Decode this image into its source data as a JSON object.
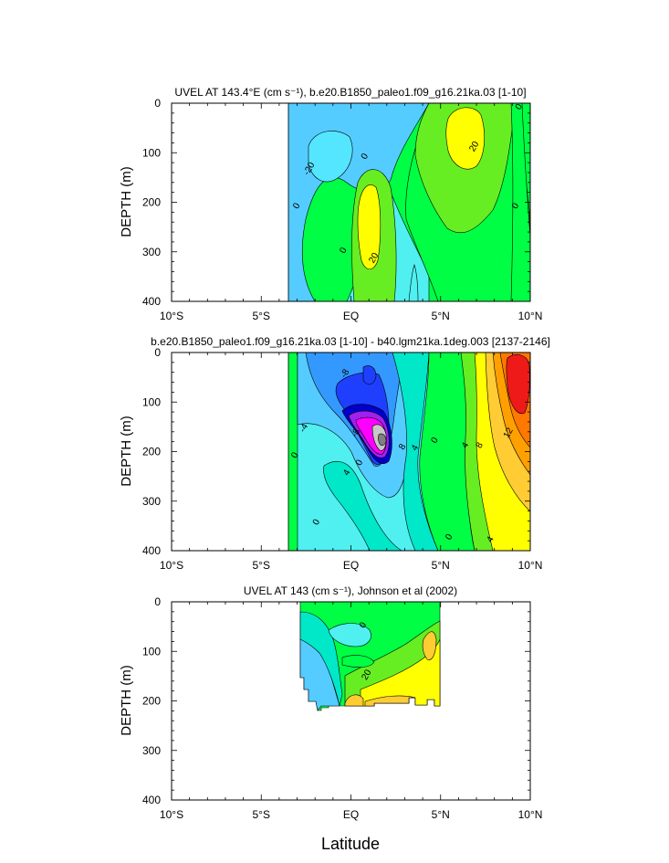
{
  "figure": {
    "xlabel": "Latitude",
    "colors": {
      "levels": [
        "#0000c8",
        "#1f3fff",
        "#3399ff",
        "#55ccff",
        "#50f0f0",
        "#00e8c8",
        "#00ff44",
        "#66ee22",
        "#b4f028",
        "#ffff00",
        "#ffcc33",
        "#ffa000",
        "#ff7800",
        "#ff4a10",
        "#ee1a1a",
        "#a020f0",
        "#ff00ff",
        "#c8c8c8",
        "#808080",
        "#ffffff"
      ]
    }
  },
  "chart_data": [
    {
      "type": "heatmap",
      "title": "UVEL AT 143.4°E (cm s⁻¹), b.e20.B1850_paleo1.f09_g16.21ka.03 [1-10]",
      "ylabel": "DEPTH (m)",
      "xlim": [
        -10,
        10
      ],
      "ylim": [
        0,
        400
      ],
      "y_inverted": true,
      "x_tick_labels": [
        "10°S",
        "5°S",
        "EQ",
        "5°N",
        "10°N"
      ],
      "x_tick_values": [
        -10,
        -5,
        0,
        5,
        10
      ],
      "y_tick_values": [
        0,
        100,
        200,
        300,
        400
      ],
      "data_extent_x": [
        -3.3,
        10
      ],
      "contour_labels": [
        {
          "text": "0",
          "x": 9.5,
          "y": 10
        },
        {
          "text": "-20",
          "x": -2.2,
          "y": 135
        },
        {
          "text": "0",
          "x": 0.9,
          "y": 110
        },
        {
          "text": "20",
          "x": 7.0,
          "y": 90
        },
        {
          "text": "0",
          "x": -2.9,
          "y": 210
        },
        {
          "text": "0",
          "x": 9.3,
          "y": 210
        },
        {
          "text": "0",
          "x": -0.3,
          "y": 300
        },
        {
          "text": "20",
          "x": 1.4,
          "y": 315
        }
      ]
    },
    {
      "type": "heatmap",
      "title": "b.e20.B1850_paleo1.f09_g16.21ka.03 [1-10] - b40.lgm21ka.1deg.003 [2137-2146]",
      "ylabel": "DEPTH (m)",
      "xlim": [
        -10,
        10
      ],
      "ylim": [
        0,
        400
      ],
      "y_inverted": true,
      "x_tick_labels": [
        "10°S",
        "5°S",
        "EQ",
        "5°N",
        "10°N"
      ],
      "x_tick_values": [
        -10,
        -5,
        0,
        5,
        10
      ],
      "y_tick_values": [
        0,
        100,
        200,
        300,
        400
      ],
      "data_extent_x": [
        -3.3,
        10
      ],
      "contour_labels": [
        {
          "text": "-8",
          "x": -0.2,
          "y": 45
        },
        {
          "text": "-4",
          "x": -2.5,
          "y": 155
        },
        {
          "text": "0",
          "x": -3.0,
          "y": 210
        },
        {
          "text": "-8",
          "x": 0.4,
          "y": 165
        },
        {
          "text": "4",
          "x": 3.7,
          "y": 195
        },
        {
          "text": "8",
          "x": 3.0,
          "y": 193
        },
        {
          "text": "0",
          "x": 4.8,
          "y": 180
        },
        {
          "text": "4",
          "x": 6.5,
          "y": 190
        },
        {
          "text": "8",
          "x": 7.3,
          "y": 190
        },
        {
          "text": "12",
          "x": 8.9,
          "y": 165
        },
        {
          "text": "0",
          "x": 0.6,
          "y": 225
        },
        {
          "text": "4",
          "x": -0.1,
          "y": 245
        },
        {
          "text": "0",
          "x": -1.8,
          "y": 345
        },
        {
          "text": "0",
          "x": 5.6,
          "y": 375
        },
        {
          "text": "4",
          "x": 7.9,
          "y": 380
        }
      ]
    },
    {
      "type": "heatmap",
      "title": "UVEL AT 143 (cm s⁻¹), Johnson et al (2002)",
      "ylabel": "DEPTH (m)",
      "xlim": [
        -10,
        10
      ],
      "ylim": [
        0,
        400
      ],
      "y_inverted": true,
      "x_tick_labels": [
        "10°S",
        "5°S",
        "EQ",
        "5°N",
        "10°N"
      ],
      "x_tick_values": [
        -10,
        -5,
        0,
        5,
        10
      ],
      "y_tick_values": [
        0,
        100,
        200,
        300,
        400
      ],
      "data_extent_x": [
        -2.7,
        5
      ],
      "data_extent_y": [
        0,
        220
      ],
      "contour_labels": [
        {
          "text": "0",
          "x": 0.8,
          "y": 50
        },
        {
          "text": "20",
          "x": 1.0,
          "y": 150
        }
      ]
    }
  ]
}
